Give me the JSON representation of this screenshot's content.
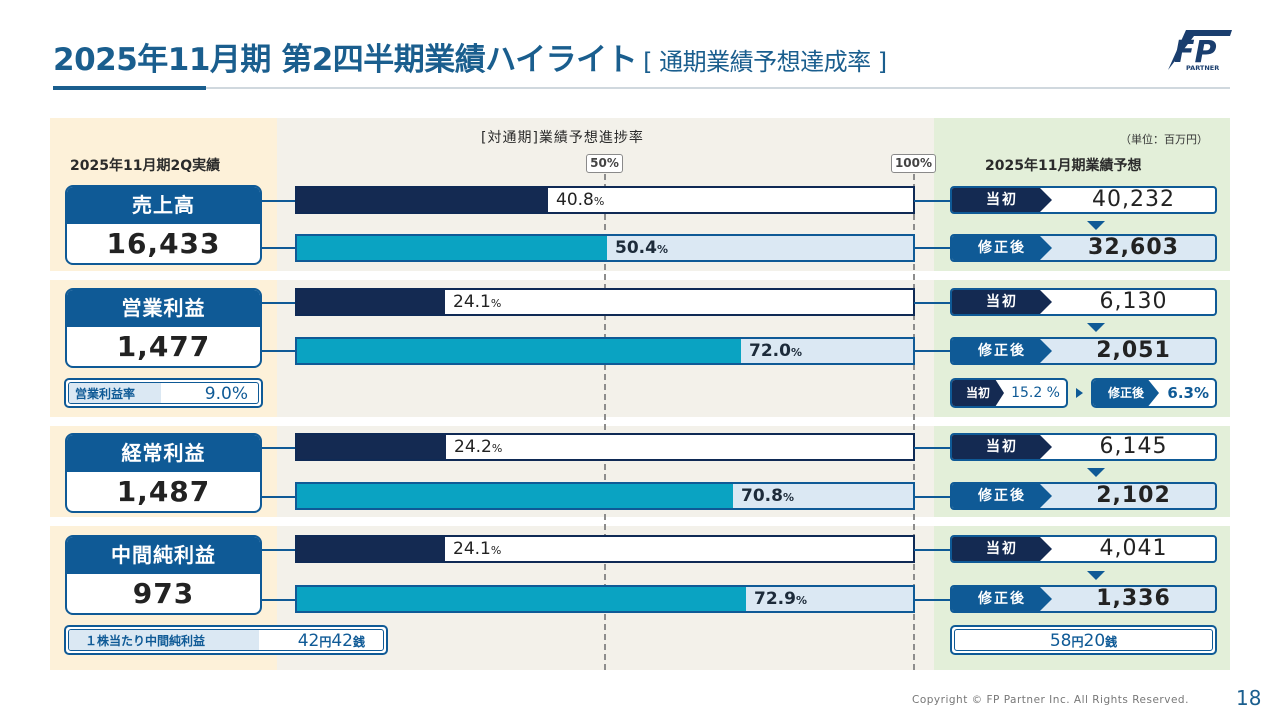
{
  "title": {
    "main": "2025年11月期 第2四半期業績ハイライト",
    "sub": "[ 通期業績予想達成率 ]"
  },
  "logo": {
    "letters": "FP",
    "sub": "PARTNER"
  },
  "headers": {
    "left": "2025年11月期2Q実績",
    "middle": "[対通期]業績予想進捗率",
    "right": "2025年11月期業績予想",
    "unit": "（単位：百万円）",
    "marker_50": "50%",
    "marker_100": "100%"
  },
  "labels": {
    "initial": "当初",
    "revised": "修正後"
  },
  "metrics": [
    {
      "name": "売上高",
      "actual": "16,433",
      "progress_initial": 40.8,
      "progress_initial_label": "40.8",
      "progress_revised": 50.4,
      "progress_revised_label": "50.4",
      "forecast_initial": "40,232",
      "forecast_revised": "32,603"
    },
    {
      "name": "営業利益",
      "actual": "1,477",
      "progress_initial": 24.1,
      "progress_initial_label": "24.1",
      "progress_revised": 72.0,
      "progress_revised_label": "72.0",
      "forecast_initial": "6,130",
      "forecast_revised": "2,051"
    },
    {
      "name": "経常利益",
      "actual": "1,487",
      "progress_initial": 24.2,
      "progress_initial_label": "24.2",
      "progress_revised": 70.8,
      "progress_revised_label": "70.8",
      "forecast_initial": "6,145",
      "forecast_revised": "2,102"
    },
    {
      "name": "中間純利益",
      "actual": "973",
      "progress_initial": 24.1,
      "progress_initial_label": "24.1",
      "progress_revised": 72.9,
      "progress_revised_label": "72.9",
      "forecast_initial": "4,041",
      "forecast_revised": "1,336"
    }
  ],
  "pct_sign": "%",
  "operating_margin": {
    "label": "営業利益率",
    "actual": "9.0%",
    "initial": "15.2 %",
    "revised": "6.3%"
  },
  "eps": {
    "label": "１株当たり中間純利益",
    "actual_a": "42",
    "actual_b": "42",
    "forecast_a": "58",
    "forecast_b": "20",
    "yen": "円",
    "sen": "銭"
  },
  "footer": {
    "copyright": "Copyright © FP Partner Inc. All Rights Reserved.",
    "page": "18"
  },
  "colors": {
    "navy": "#142a52",
    "blue": "#0f5a96",
    "cyan": "#0aa3c2",
    "light_blue": "#dbe8f3"
  }
}
